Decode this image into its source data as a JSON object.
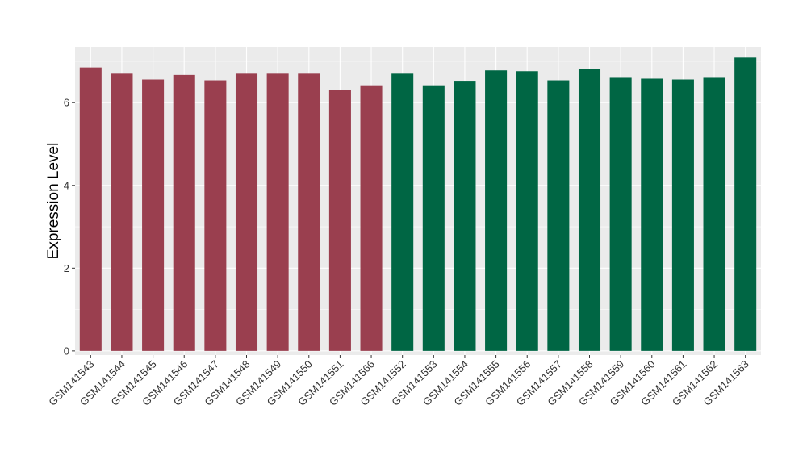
{
  "chart_data": {
    "type": "bar",
    "title": "",
    "xlabel": "",
    "ylabel": "Expression Level",
    "ylim": [
      -0.1,
      7.35
    ],
    "yticks": [
      0,
      2,
      4,
      6
    ],
    "grid": true,
    "legend": "none",
    "colors": {
      "group1": "#9a3f4f",
      "group2": "#006644",
      "panel": "#ebebeb",
      "grid": "#ffffff"
    },
    "categories": [
      "GSM141543",
      "GSM141544",
      "GSM141545",
      "GSM141546",
      "GSM141547",
      "GSM141548",
      "GSM141549",
      "GSM141550",
      "GSM141551",
      "GSM141566",
      "GSM141552",
      "GSM141553",
      "GSM141554",
      "GSM141555",
      "GSM141556",
      "GSM141557",
      "GSM141558",
      "GSM141559",
      "GSM141560",
      "GSM141561",
      "GSM141562",
      "GSM141563"
    ],
    "values": [
      6.85,
      6.7,
      6.56,
      6.67,
      6.54,
      6.7,
      6.7,
      6.7,
      6.3,
      6.42,
      6.7,
      6.42,
      6.51,
      6.78,
      6.76,
      6.54,
      6.82,
      6.6,
      6.58,
      6.56,
      6.6,
      7.09
    ],
    "groups": [
      1,
      1,
      1,
      1,
      1,
      1,
      1,
      1,
      1,
      1,
      2,
      2,
      2,
      2,
      2,
      2,
      2,
      2,
      2,
      2,
      2,
      2
    ]
  }
}
